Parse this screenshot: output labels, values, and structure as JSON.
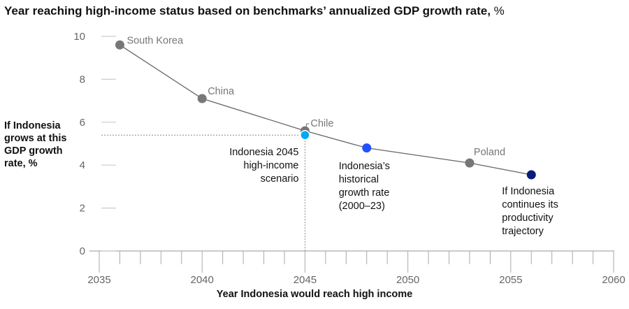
{
  "chart_data": {
    "type": "line",
    "title": "Year reaching high-income status based on benchmarks’ annualized GDP growth rate,",
    "title_unit": "%",
    "xlabel": "Year Indonesia would reach high income",
    "ylabel": "If Indonesia grows at this GDP growth rate, %",
    "xlim": [
      2035,
      2060
    ],
    "ylim": [
      0,
      10
    ],
    "x_ticks": [
      "2035",
      "2040",
      "2045",
      "2050",
      "2055",
      "2060"
    ],
    "y_ticks": [
      "0",
      "2",
      "4",
      "6",
      "8",
      "10"
    ],
    "grid": false,
    "points": [
      {
        "label": "South Korea",
        "x": 2036,
        "y": 9.6,
        "color": "#777777",
        "kind": "benchmark"
      },
      {
        "label": "China",
        "x": 2040,
        "y": 7.1,
        "color": "#777777",
        "kind": "benchmark"
      },
      {
        "label": "Chile",
        "x": 2045,
        "y": 5.6,
        "color": "#777777",
        "kind": "benchmark"
      },
      {
        "label": "Indonesia 2045 high-income scenario",
        "x": 2045,
        "y": 5.4,
        "color": "#00A9F4",
        "kind": "indonesia"
      },
      {
        "label": "Indonesia’s historical growth rate (2000–23)",
        "x": 2048,
        "y": 4.8,
        "color": "#2251FF",
        "kind": "indonesia"
      },
      {
        "label": "Poland",
        "x": 2053,
        "y": 4.1,
        "color": "#777777",
        "kind": "benchmark"
      },
      {
        "label": "If Indonesia continues its productivity trajectory",
        "x": 2056,
        "y": 3.55,
        "color": "#051C7A",
        "kind": "indonesia"
      }
    ]
  }
}
